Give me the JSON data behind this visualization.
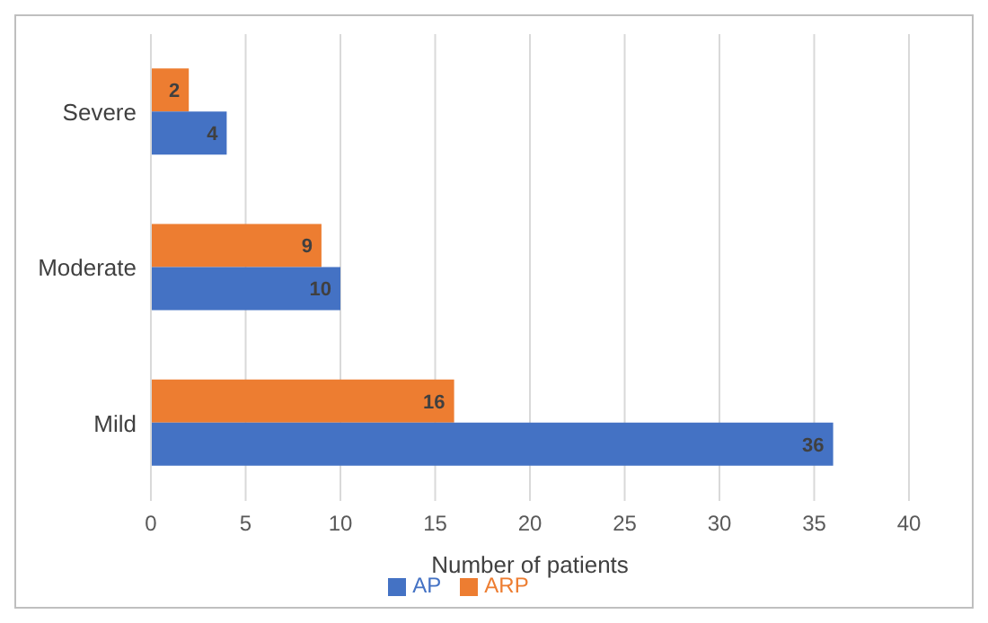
{
  "chart_data": {
    "type": "bar",
    "orientation": "horizontal",
    "categories": [
      "Severe",
      "Moderate",
      "Mild"
    ],
    "series": [
      {
        "name": "ARP",
        "color": "#ed7d31",
        "values": [
          2,
          9,
          16
        ]
      },
      {
        "name": "AP",
        "color": "#4472c4",
        "values": [
          4,
          10,
          36
        ]
      }
    ],
    "xlabel": "Number of patients",
    "xlim": [
      0,
      40
    ],
    "xticks": [
      0,
      5,
      10,
      15,
      20,
      25,
      30,
      35,
      40
    ],
    "grid": "x",
    "legend": "bottom",
    "data_labels": true
  }
}
